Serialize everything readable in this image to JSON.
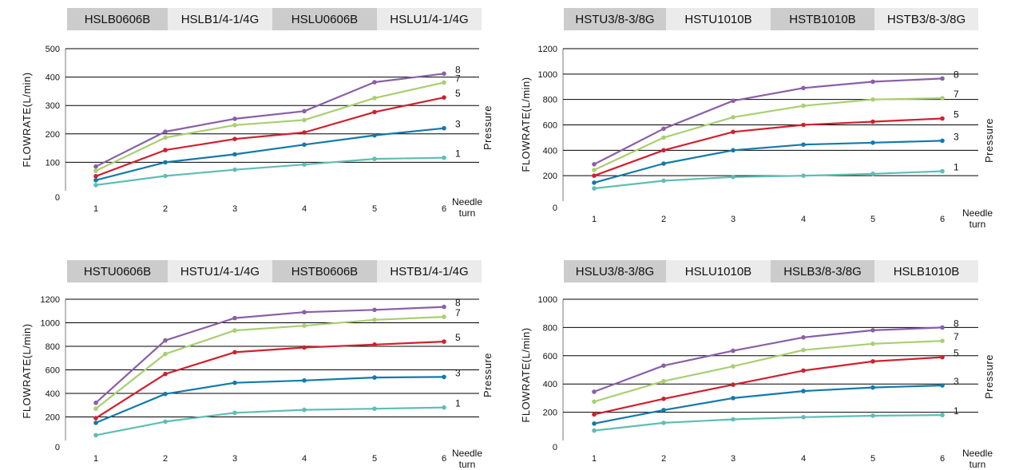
{
  "colors": {
    "tab_dark": "#cccccc",
    "tab_light": "#ebebeb",
    "gridline": "#000000",
    "axis": "#7a7a7a"
  },
  "chart_data": [
    {
      "type": "line",
      "title_tabs": [
        "HSLB0606B",
        "HSLB1/4-1/4G",
        "HSLU0606B",
        "HSLU1/4-1/4G"
      ],
      "ylabel": "FLOWRATE(L/min)",
      "xlabel": "Needle turn",
      "legend_title": "Pressure",
      "ylim": [
        0,
        500
      ],
      "yticks": [
        0,
        100,
        200,
        300,
        400,
        500
      ],
      "x": [
        1,
        2,
        3,
        4,
        5,
        6
      ],
      "series": [
        {
          "name": "8",
          "color": "#8a5fa6",
          "values": [
            85,
            208,
            253,
            280,
            382,
            412
          ]
        },
        {
          "name": "7",
          "color": "#a9cf72",
          "values": [
            70,
            187,
            231,
            249,
            326,
            381
          ]
        },
        {
          "name": "5",
          "color": "#d0202e",
          "values": [
            51,
            143,
            182,
            205,
            277,
            328
          ]
        },
        {
          "name": "3",
          "color": "#137aa9",
          "values": [
            37,
            100,
            128,
            162,
            195,
            220
          ]
        },
        {
          "name": "1",
          "color": "#5ebeb4",
          "values": [
            20,
            52,
            74,
            92,
            112,
            116
          ]
        }
      ]
    },
    {
      "type": "line",
      "title_tabs": [
        "HSTU3/8-3/8G",
        "HSTU1010B",
        "HSTB1010B",
        "HSTB3/8-3/8G"
      ],
      "ylabel": "FLOWRATE(L/min)",
      "xlabel": "Needle turn",
      "legend_title": "Pressure",
      "ylim": [
        0,
        1200
      ],
      "yticks": [
        0,
        200,
        400,
        600,
        800,
        1000,
        1200
      ],
      "x": [
        1,
        2,
        3,
        4,
        5,
        6
      ],
      "series": [
        {
          "name": "8",
          "color": "#8a5fa6",
          "values": [
            290,
            570,
            790,
            890,
            940,
            965
          ]
        },
        {
          "name": "7",
          "color": "#a9cf72",
          "values": [
            245,
            500,
            660,
            750,
            800,
            810
          ]
        },
        {
          "name": "5",
          "color": "#d0202e",
          "values": [
            200,
            400,
            545,
            600,
            625,
            650
          ]
        },
        {
          "name": "3",
          "color": "#137aa9",
          "values": [
            145,
            295,
            400,
            445,
            460,
            475
          ]
        },
        {
          "name": "1",
          "color": "#5ebeb4",
          "values": [
            100,
            160,
            190,
            200,
            215,
            235
          ]
        }
      ]
    },
    {
      "type": "line",
      "title_tabs": [
        "HSTU0606B",
        "HSTU1/4-1/4G",
        "HSTB0606B",
        "HSTB1/4-1/4G"
      ],
      "ylabel": "FLOWRATE(L/min)",
      "xlabel": "Needle turn",
      "legend_title": "Pressure",
      "ylim": [
        0,
        1200
      ],
      "yticks": [
        0,
        200,
        400,
        600,
        800,
        1000,
        1200
      ],
      "x": [
        1,
        2,
        3,
        4,
        5,
        6
      ],
      "series": [
        {
          "name": "8",
          "color": "#8a5fa6",
          "values": [
            320,
            850,
            1040,
            1090,
            1110,
            1135
          ]
        },
        {
          "name": "7",
          "color": "#a9cf72",
          "values": [
            270,
            735,
            935,
            975,
            1025,
            1050
          ]
        },
        {
          "name": "5",
          "color": "#d0202e",
          "values": [
            190,
            565,
            750,
            790,
            815,
            840
          ]
        },
        {
          "name": "3",
          "color": "#137aa9",
          "values": [
            150,
            395,
            490,
            510,
            535,
            540
          ]
        },
        {
          "name": "1",
          "color": "#5ebeb4",
          "values": [
            45,
            160,
            235,
            260,
            270,
            280
          ]
        }
      ]
    },
    {
      "type": "line",
      "title_tabs": [
        "HSLU3/8-3/8G",
        "HSLU1010B",
        "HSLB3/8-3/8G",
        "HSLB1010B"
      ],
      "ylabel": "FLOWRATE(L/min)",
      "xlabel": "Needle turn",
      "legend_title": "Pressure",
      "ylim": [
        0,
        1000
      ],
      "yticks": [
        0,
        200,
        400,
        600,
        800,
        1000
      ],
      "x": [
        1,
        2,
        3,
        4,
        5,
        6
      ],
      "series": [
        {
          "name": "8",
          "color": "#8a5fa6",
          "values": [
            345,
            530,
            635,
            730,
            780,
            800
          ]
        },
        {
          "name": "7",
          "color": "#a9cf72",
          "values": [
            275,
            420,
            525,
            640,
            685,
            705
          ]
        },
        {
          "name": "5",
          "color": "#d0202e",
          "values": [
            185,
            295,
            395,
            495,
            560,
            590
          ]
        },
        {
          "name": "3",
          "color": "#137aa9",
          "values": [
            120,
            215,
            300,
            350,
            375,
            390
          ]
        },
        {
          "name": "1",
          "color": "#5ebeb4",
          "values": [
            70,
            125,
            150,
            165,
            175,
            180
          ]
        }
      ]
    }
  ]
}
